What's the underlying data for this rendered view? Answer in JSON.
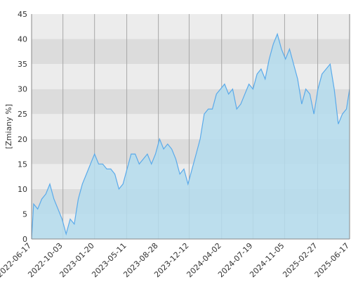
{
  "chart_data": {
    "type": "area",
    "y_label": "[Zmiany %]",
    "x": [
      "2022-06-17",
      "2022-06-24",
      "2022-07-08",
      "2022-07-22",
      "2022-08-05",
      "2022-08-19",
      "2022-09-02",
      "2022-09-16",
      "2022-09-30",
      "2022-10-14",
      "2022-10-28",
      "2022-11-11",
      "2022-11-25",
      "2022-12-09",
      "2022-12-23",
      "2023-01-06",
      "2023-01-20",
      "2023-02-03",
      "2023-02-17",
      "2023-03-03",
      "2023-03-17",
      "2023-03-31",
      "2023-04-14",
      "2023-04-28",
      "2023-05-12",
      "2023-05-26",
      "2023-06-09",
      "2023-06-23",
      "2023-07-07",
      "2023-07-21",
      "2023-08-04",
      "2023-08-18",
      "2023-09-01",
      "2023-09-15",
      "2023-09-29",
      "2023-10-13",
      "2023-10-27",
      "2023-11-10",
      "2023-11-24",
      "2023-12-08",
      "2023-12-22",
      "2024-01-05",
      "2024-01-19",
      "2024-02-02",
      "2024-02-16",
      "2024-03-01",
      "2024-03-15",
      "2024-03-29",
      "2024-04-12",
      "2024-04-26",
      "2024-05-10",
      "2024-05-24",
      "2024-06-07",
      "2024-06-21",
      "2024-07-05",
      "2024-07-19",
      "2024-08-02",
      "2024-08-16",
      "2024-08-30",
      "2024-09-13",
      "2024-09-27",
      "2024-10-11",
      "2024-10-25",
      "2024-11-08",
      "2024-11-22",
      "2024-12-06",
      "2024-12-20",
      "2025-01-03",
      "2025-01-17",
      "2025-01-31",
      "2025-02-14",
      "2025-02-28",
      "2025-03-14",
      "2025-03-28",
      "2025-04-11",
      "2025-04-25",
      "2025-05-09",
      "2025-05-23",
      "2025-06-06",
      "2025-06-17"
    ],
    "values": [
      0,
      7,
      6,
      8,
      9,
      11,
      8,
      6,
      4,
      1,
      4,
      3,
      8,
      11,
      13,
      15,
      17,
      15,
      15,
      14,
      14,
      13,
      10,
      11,
      14,
      17,
      17,
      15,
      16,
      17,
      15,
      17,
      20,
      18,
      19,
      18,
      16,
      13,
      14,
      11,
      14,
      17,
      20,
      25,
      26,
      26,
      29,
      30,
      31,
      29,
      30,
      26,
      27,
      29,
      31,
      30,
      33,
      34,
      32,
      36,
      39,
      41,
      38,
      36,
      38,
      35,
      32,
      27,
      30,
      29,
      25,
      30,
      33,
      34,
      35,
      30,
      23,
      25,
      26,
      30
    ],
    "line_color": "#5aaaea",
    "fill_color": "#b4dced",
    "xlim": [
      "2022-06-17",
      "2025-06-17"
    ],
    "xticks": [
      "2022-06-17",
      "2022-10-03",
      "2023-01-20",
      "2023-05-11",
      "2023-08-28",
      "2023-12-12",
      "2024-04-02",
      "2024-07-19",
      "2024-11-05",
      "2025-02-27",
      "2025-06-17"
    ],
    "ylim": [
      0,
      45
    ],
    "yticks": [
      0,
      5,
      10,
      15,
      20,
      25,
      30,
      35,
      40,
      45
    ],
    "grid": true
  }
}
